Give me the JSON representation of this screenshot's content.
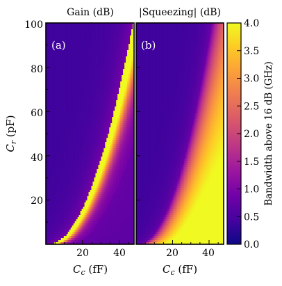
{
  "chart_data": [
    {
      "type": "heatmap",
      "panel_label": "(a)",
      "title": "Gain (dB)",
      "xlabel_main": "C",
      "xlabel_sub": "c",
      "xlabel_unit": " (fF)",
      "ylabel_main": "C",
      "ylabel_sub": "r",
      "ylabel_unit": " (pF)",
      "xlim": [
        0,
        48
      ],
      "ylim": [
        0,
        100
      ],
      "xticks": [
        20,
        40
      ],
      "yticks": [
        20,
        40,
        60,
        80,
        100
      ],
      "band": {
        "description_points": [
          {
            "x": 5,
            "y": 2,
            "width": 3.8
          },
          {
            "x": 20,
            "y": 20,
            "width": 2.4
          },
          {
            "x": 30,
            "y": 40,
            "width": 2.6
          },
          {
            "x": 40,
            "y": 60,
            "width": 2.5
          },
          {
            "x": 47,
            "y": 100,
            "width": 1.9
          }
        ]
      }
    },
    {
      "type": "heatmap",
      "panel_label": "(b)",
      "title": "|Squeezing| (dB)",
      "xlabel_main": "C",
      "xlabel_sub": "c",
      "xlabel_unit": " (fF)",
      "xlim": [
        0,
        48
      ],
      "ylim": [
        0,
        100
      ],
      "xticks": [
        20,
        40
      ],
      "max_value": 4.0
    }
  ],
  "colorbar": {
    "label": "Bandwidth above 16 dB (GHz)",
    "min": 0.0,
    "max": 4.0,
    "ticks": [
      "0.0",
      "0.5",
      "1.0",
      "1.5",
      "2.0",
      "2.5",
      "3.0",
      "3.5",
      "4.0"
    ],
    "colormap": "plasma"
  },
  "colors": {
    "plasma": [
      "#0d0887",
      "#46039f",
      "#7201a8",
      "#9c179e",
      "#bd3786",
      "#d8576b",
      "#ed7953",
      "#fb9f3a",
      "#fdca26",
      "#f0f921"
    ],
    "background": "#2a2ea0"
  },
  "y_tick_labels": [
    "20",
    "40",
    "60",
    "80",
    "100"
  ],
  "x_tick_labels": [
    "20",
    "40"
  ]
}
